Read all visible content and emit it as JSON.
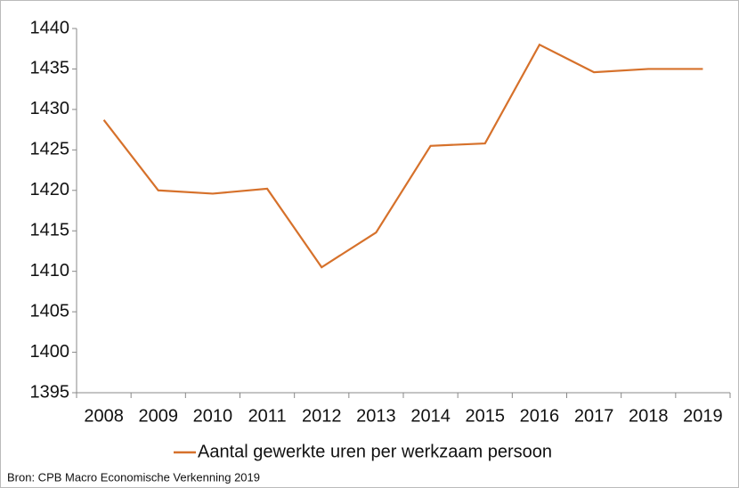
{
  "chart_data": {
    "type": "line",
    "categories": [
      "2008",
      "2009",
      "2010",
      "2011",
      "2012",
      "2013",
      "2014",
      "2015",
      "2016",
      "2017",
      "2018",
      "2019"
    ],
    "series": [
      {
        "name": "Aantal gewerkte uren per werkzaam persoon",
        "color": "#d6712b",
        "values": [
          1428.7,
          1420,
          1419.6,
          1420.2,
          1410.5,
          1414.8,
          1425.5,
          1425.8,
          1438,
          1434.6,
          1435,
          1435
        ]
      }
    ],
    "ylim": [
      1395,
      1440
    ],
    "yticks": [
      1395,
      1400,
      1405,
      1410,
      1415,
      1420,
      1425,
      1430,
      1435,
      1440
    ],
    "grid": false,
    "legend": "bottom",
    "source": "Bron: CPB Macro Economische Verkenning 2019"
  }
}
